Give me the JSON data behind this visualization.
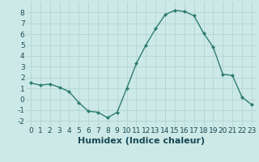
{
  "x": [
    0,
    1,
    2,
    3,
    4,
    5,
    6,
    7,
    8,
    9,
    10,
    11,
    12,
    13,
    14,
    15,
    16,
    17,
    18,
    19,
    20,
    21,
    22,
    23
  ],
  "y": [
    1.5,
    1.3,
    1.4,
    1.1,
    0.7,
    -0.3,
    -1.1,
    -1.2,
    -1.7,
    -1.2,
    1.0,
    3.3,
    5.0,
    6.5,
    7.8,
    8.2,
    8.1,
    7.7,
    6.1,
    4.8,
    2.3,
    2.2,
    0.2,
    -0.5
  ],
  "line_color": "#2e7d72",
  "marker": "D",
  "marker_size": 2.0,
  "bg_color": "#cce9e7",
  "grid_color": "#b2d4d1",
  "xlabel": "Humidex (Indice chaleur)",
  "ylim": [
    -2.5,
    9.0
  ],
  "xlim": [
    -0.5,
    23.5
  ],
  "yticks": [
    -2,
    -1,
    0,
    1,
    2,
    3,
    4,
    5,
    6,
    7,
    8
  ],
  "xticks": [
    0,
    1,
    2,
    3,
    4,
    5,
    6,
    7,
    8,
    9,
    10,
    11,
    12,
    13,
    14,
    15,
    16,
    17,
    18,
    19,
    20,
    21,
    22,
    23
  ],
  "tick_fontsize": 6.5,
  "xlabel_fontsize": 8,
  "label_color": "#1a4a55"
}
